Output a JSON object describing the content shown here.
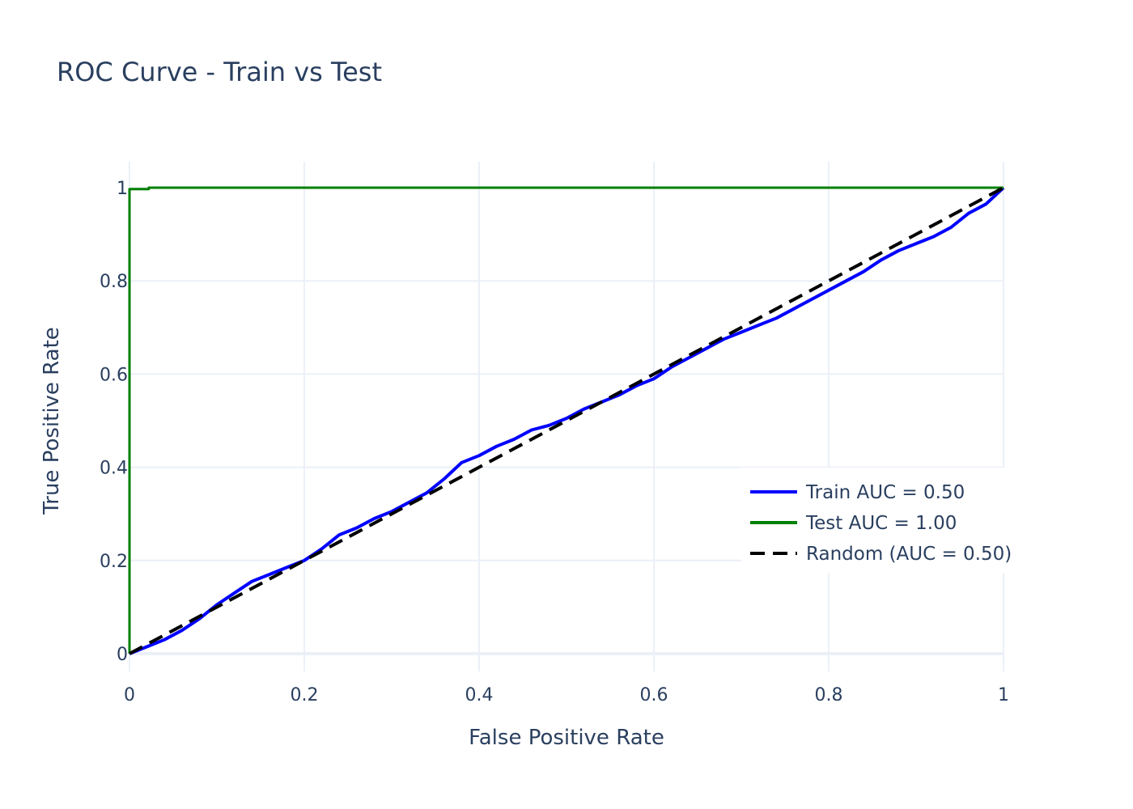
{
  "chart_data": {
    "type": "line",
    "title": "ROC Curve - Train vs Test",
    "xlabel": "False Positive Rate",
    "ylabel": "True Positive Rate",
    "xlim": [
      0,
      1
    ],
    "ylim": [
      -0.04,
      1.06
    ],
    "x_ticks": [
      "0",
      "0.2",
      "0.4",
      "0.6",
      "0.8",
      "1"
    ],
    "y_ticks": [
      "0",
      "0.2",
      "0.4",
      "0.6",
      "0.8",
      "1"
    ],
    "grid": true,
    "legend_position": "bottom-right",
    "series": [
      {
        "name": "Train AUC = 0.50",
        "color": "#0000ff",
        "dash": "solid",
        "x": [
          0,
          0.02,
          0.04,
          0.06,
          0.08,
          0.1,
          0.12,
          0.14,
          0.16,
          0.18,
          0.2,
          0.22,
          0.24,
          0.26,
          0.28,
          0.3,
          0.32,
          0.34,
          0.36,
          0.38,
          0.4,
          0.42,
          0.44,
          0.46,
          0.48,
          0.5,
          0.52,
          0.54,
          0.56,
          0.58,
          0.6,
          0.62,
          0.64,
          0.66,
          0.68,
          0.7,
          0.72,
          0.74,
          0.76,
          0.78,
          0.8,
          0.82,
          0.84,
          0.86,
          0.88,
          0.9,
          0.92,
          0.94,
          0.96,
          0.98,
          1.0
        ],
        "y": [
          0,
          0.015,
          0.03,
          0.05,
          0.075,
          0.105,
          0.13,
          0.155,
          0.17,
          0.185,
          0.2,
          0.225,
          0.255,
          0.27,
          0.29,
          0.305,
          0.325,
          0.345,
          0.375,
          0.41,
          0.425,
          0.445,
          0.46,
          0.48,
          0.49,
          0.505,
          0.525,
          0.54,
          0.555,
          0.575,
          0.59,
          0.615,
          0.635,
          0.655,
          0.675,
          0.69,
          0.705,
          0.72,
          0.74,
          0.76,
          0.78,
          0.8,
          0.82,
          0.845,
          0.865,
          0.88,
          0.895,
          0.915,
          0.945,
          0.965,
          1.0
        ]
      },
      {
        "name": "Test AUC = 1.00",
        "color": "#008000",
        "dash": "solid",
        "x": [
          0,
          0,
          0.022,
          0.022,
          1
        ],
        "y": [
          0,
          0.997,
          0.997,
          1,
          1
        ]
      },
      {
        "name": "Random (AUC = 0.50)",
        "color": "#000000",
        "dash": "dash",
        "x": [
          0,
          1
        ],
        "y": [
          0,
          1
        ]
      }
    ]
  }
}
